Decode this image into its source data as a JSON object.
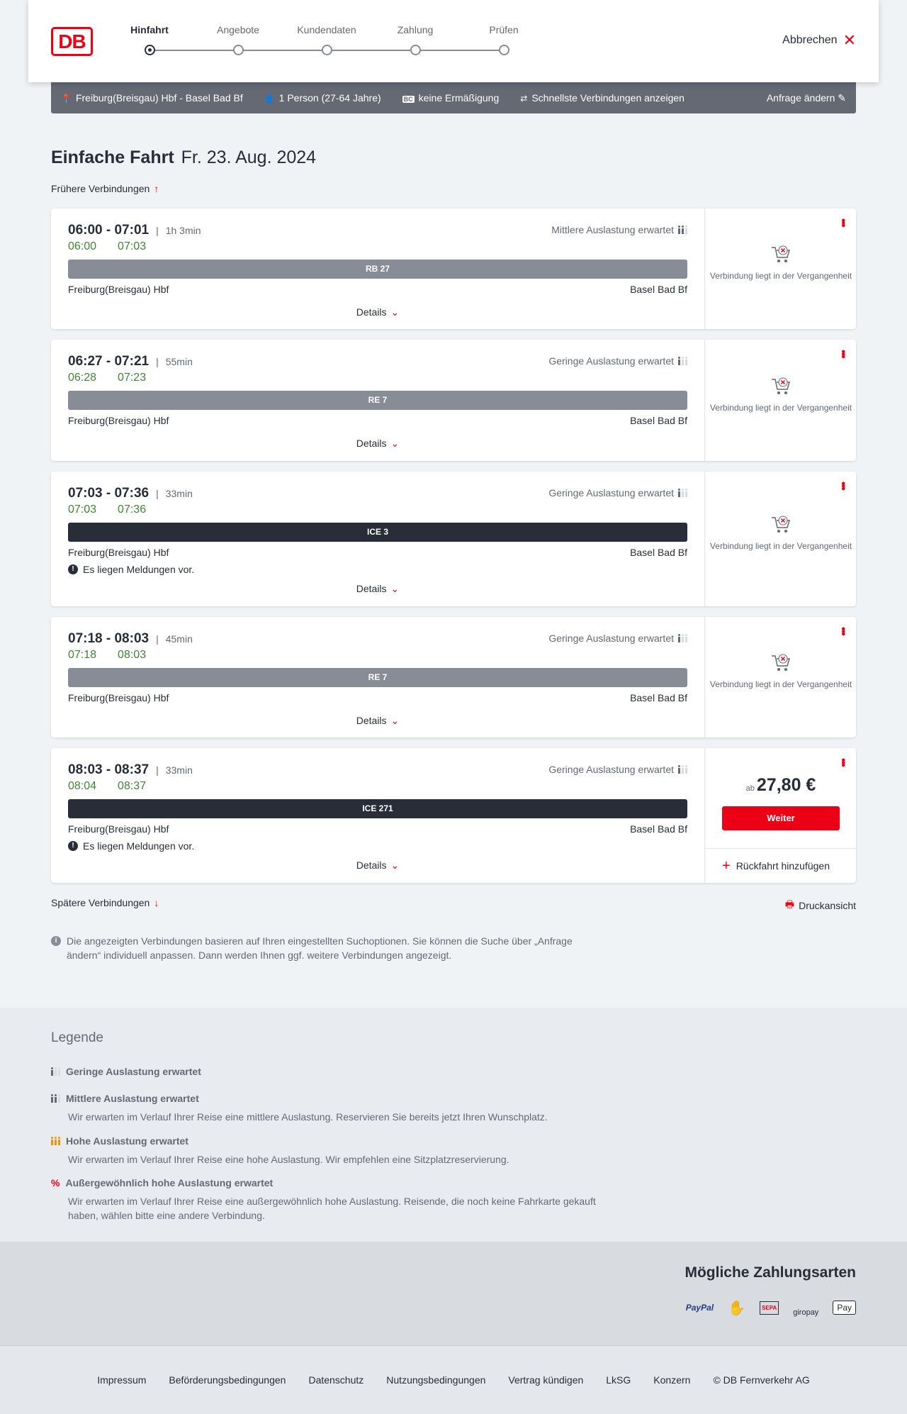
{
  "header": {
    "logo": "DB",
    "cancel": "Abbrechen",
    "steps": [
      "Hinfahrt",
      "Angebote",
      "Kundendaten",
      "Zahlung",
      "Prüfen"
    ],
    "active_step": 0
  },
  "query": {
    "route": "Freiburg(Breisgau) Hbf - Basel Bad Bf",
    "passengers": "1 Person (27-64 Jahre)",
    "discount_badge": "BC",
    "discount": "keine Ermäßigung",
    "option": "Schnellste Verbindungen anzeigen",
    "edit": "Anfrage ändern"
  },
  "title": {
    "type": "Einfache Fahrt",
    "date": "Fr. 23. Aug. 2024"
  },
  "earlier": "Frühere Verbindungen",
  "later": "Spätere Verbindungen",
  "print": "Druckansicht",
  "details_label": "Details",
  "connections": [
    {
      "times": "06:00 - 07:01",
      "duration": "1h 3min",
      "rt_dep": "06:00",
      "rt_arr": "07:03",
      "load": "Mittlere Auslastung erwartet",
      "load_level": 2,
      "train": "RB 27",
      "train_color": "#878c96",
      "from": "Freiburg(Breisgau) Hbf",
      "to": "Basel Bad Bf",
      "message": "",
      "status": "Verbindung liegt in der Vergangenheit"
    },
    {
      "times": "06:27 - 07:21",
      "duration": "55min",
      "rt_dep": "06:28",
      "rt_arr": "07:23",
      "load": "Geringe Auslastung erwartet",
      "load_level": 1,
      "train": "RE 7",
      "train_color": "#878c96",
      "from": "Freiburg(Breisgau) Hbf",
      "to": "Basel Bad Bf",
      "message": "",
      "status": "Verbindung liegt in der Vergangenheit"
    },
    {
      "times": "07:03 - 07:36",
      "duration": "33min",
      "rt_dep": "07:03",
      "rt_arr": "07:36",
      "load": "Geringe Auslastung erwartet",
      "load_level": 1,
      "train": "ICE 3",
      "train_color": "#282d37",
      "from": "Freiburg(Breisgau) Hbf",
      "to": "Basel Bad Bf",
      "message": "Es liegen Meldungen vor.",
      "status": "Verbindung liegt in der Vergangenheit"
    },
    {
      "times": "07:18 - 08:03",
      "duration": "45min",
      "rt_dep": "07:18",
      "rt_arr": "08:03",
      "load": "Geringe Auslastung erwartet",
      "load_level": 1,
      "train": "RE 7",
      "train_color": "#878c96",
      "from": "Freiburg(Breisgau) Hbf",
      "to": "Basel Bad Bf",
      "message": "",
      "status": "Verbindung liegt in der Vergangenheit"
    },
    {
      "times": "08:03 - 08:37",
      "duration": "33min",
      "rt_dep": "08:04",
      "rt_arr": "08:37",
      "load": "Geringe Auslastung erwartet",
      "load_level": 1,
      "train": "ICE 271",
      "train_color": "#282d37",
      "from": "Freiburg(Breisgau) Hbf",
      "to": "Basel Bad Bf",
      "message": "Es liegen Meldungen vor.",
      "price_prefix": "ab",
      "price": "27,80 €",
      "continue": "Weiter",
      "return": "Rückfahrt hinzufügen"
    }
  ],
  "info": "Die angezeigten Verbindungen basieren auf Ihren eingestellten Suchoptionen. Sie können die Suche über „Anfrage ändern“ individuell anpassen. Dann werden Ihnen ggf. weitere Verbindungen angezeigt.",
  "legend": {
    "title": "Legende",
    "items": [
      {
        "title": "Geringe Auslastung erwartet",
        "text": ""
      },
      {
        "title": "Mittlere Auslastung erwartet",
        "text": "Wir erwarten im Verlauf Ihrer Reise eine mittlere Auslastung. Reservieren Sie bereits jetzt Ihren Wunschplatz."
      },
      {
        "title": "Hohe Auslastung erwartet",
        "text": "Wir erwarten im Verlauf Ihrer Reise eine hohe Auslastung. Wir empfehlen eine Sitzplatzreservierung."
      },
      {
        "title": "Außergewöhnlich hohe Auslastung erwartet",
        "text": "Wir erwarten im Verlauf Ihrer Reise eine außergewöhnlich hohe Auslastung. Reisende, die noch keine Fahrkarte gekauft haben, wählen bitte eine andere Verbindung."
      }
    ]
  },
  "payment": {
    "title": "Mögliche Zahlungsarten",
    "methods": [
      "PayPal",
      "Kreditkarte",
      "SEPA",
      "giropay",
      "Apple Pay"
    ]
  },
  "footer": [
    "Impressum",
    "Beförderungsbedingungen",
    "Datenschutz",
    "Nutzungsbedingungen",
    "Vertrag kündigen",
    "LkSG",
    "Konzern",
    "© DB Fernverkehr AG"
  ],
  "colors": {
    "brand": "#ec0016",
    "realtime": "#408335",
    "query_bar": "#646973"
  }
}
